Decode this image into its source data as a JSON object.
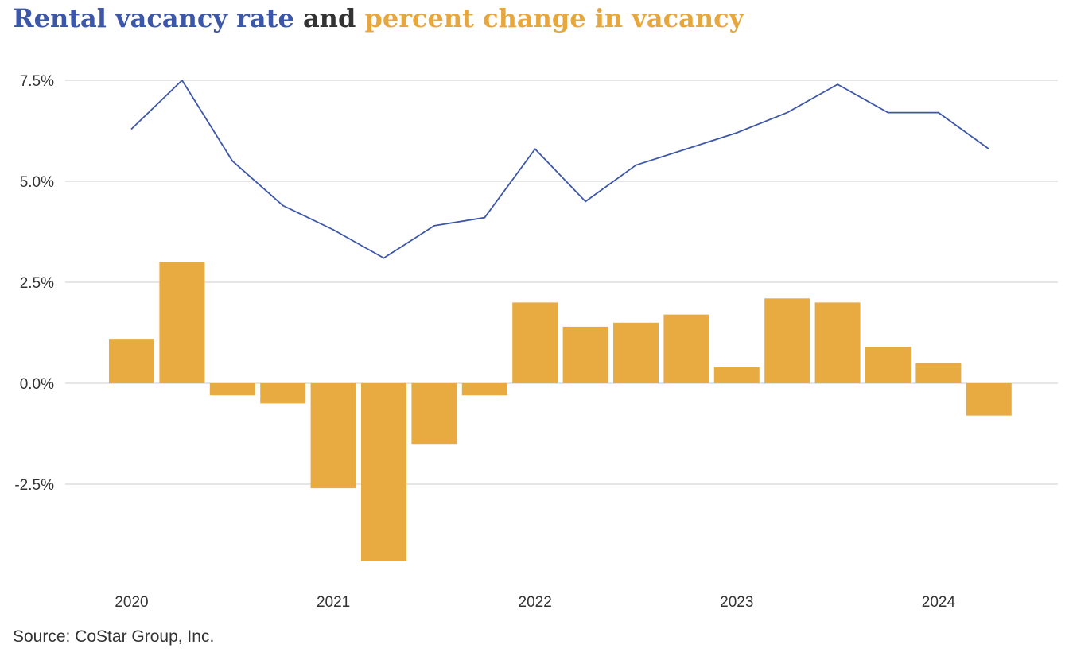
{
  "title": {
    "part1": "Rental vacancy rate",
    "part2": "and",
    "part3": "percent change in vacancy"
  },
  "source": "Source: CoStar Group, Inc.",
  "colors": {
    "line": "#3d57a8",
    "bars": "#e8ab42",
    "grid": "#cccccc"
  },
  "chart_data": {
    "type": "bar",
    "ylim": [
      -5,
      7.5
    ],
    "yticks": [
      7.5,
      5.0,
      2.5,
      0.0,
      -2.5
    ],
    "ytick_labels": [
      "7.5%",
      "5.0%",
      "2.5%",
      "0.0%",
      "-2.5%"
    ],
    "xtick_labels": [
      "2020",
      "2021",
      "2022",
      "2023",
      "2024"
    ],
    "grid": true,
    "categories": [
      "2020 Q1",
      "2020 Q2",
      "2020 Q3",
      "2020 Q4",
      "2021 Q1",
      "2021 Q2",
      "2021 Q3",
      "2021 Q4",
      "2022 Q1",
      "2022 Q2",
      "2022 Q3",
      "2022 Q4",
      "2023 Q1",
      "2023 Q2",
      "2023 Q3",
      "2023 Q4",
      "2024 Q1",
      "2024 Q2"
    ],
    "series": [
      {
        "name": "Rental vacancy rate",
        "type": "line",
        "values": [
          6.3,
          7.5,
          5.5,
          4.4,
          3.8,
          3.1,
          3.9,
          4.1,
          5.8,
          4.5,
          5.4,
          5.8,
          6.2,
          6.7,
          7.4,
          6.7,
          6.7,
          5.8
        ]
      },
      {
        "name": "percent change in vacancy",
        "type": "bar",
        "values": [
          1.1,
          3.0,
          -0.3,
          -0.5,
          -2.6,
          -4.4,
          -1.5,
          -0.3,
          2.0,
          1.4,
          1.5,
          1.7,
          0.4,
          2.1,
          2.0,
          0.9,
          0.5,
          -0.8
        ]
      }
    ]
  }
}
